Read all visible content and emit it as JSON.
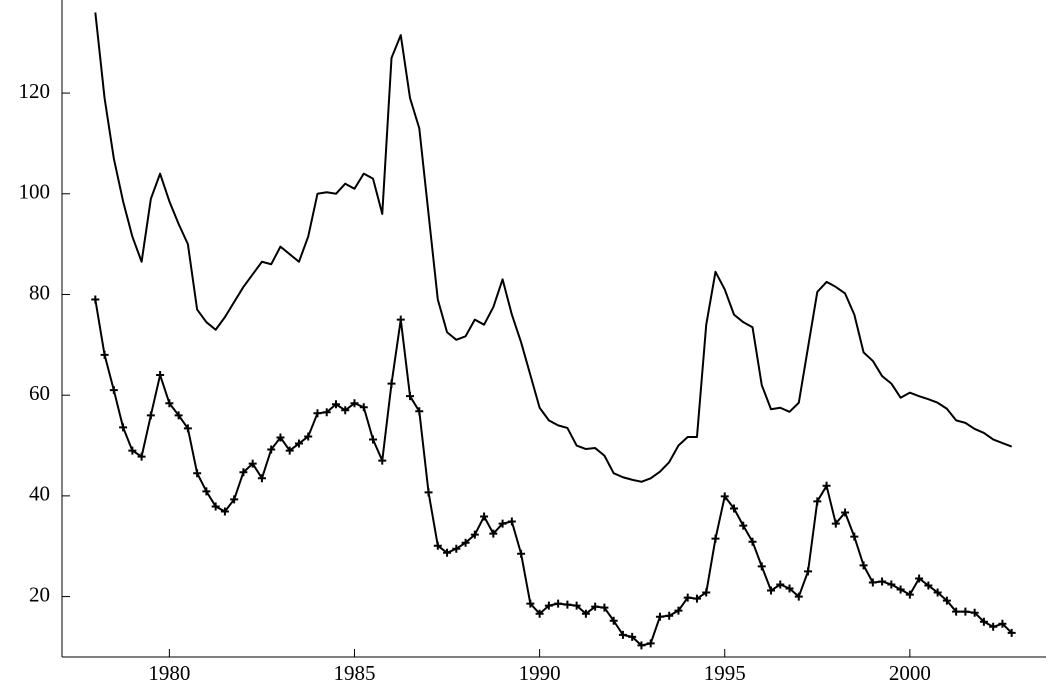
{
  "chart_data": {
    "type": "line",
    "x": [
      1978,
      1978.25,
      1978.5,
      1978.75,
      1979,
      1979.25,
      1979.5,
      1979.75,
      1980,
      1980.25,
      1980.5,
      1980.75,
      1981,
      1981.25,
      1981.5,
      1981.75,
      1982,
      1982.25,
      1982.5,
      1982.75,
      1983,
      1983.25,
      1983.5,
      1983.75,
      1984,
      1984.25,
      1984.5,
      1984.75,
      1985,
      1985.25,
      1985.5,
      1985.75,
      1986,
      1986.25,
      1986.5,
      1986.75,
      1987,
      1987.25,
      1987.5,
      1987.75,
      1988,
      1988.25,
      1988.5,
      1988.75,
      1989,
      1989.25,
      1989.5,
      1989.75,
      1990,
      1990.25,
      1990.5,
      1990.75,
      1991,
      1991.25,
      1991.5,
      1991.75,
      1992,
      1992.25,
      1992.5,
      1992.75,
      1993,
      1993.25,
      1993.5,
      1993.75,
      1994,
      1994.25,
      1994.5,
      1994.75,
      1995,
      1995.25,
      1995.5,
      1995.75,
      1996,
      1996.25,
      1996.5,
      1996.75,
      1997,
      1997.25,
      1997.5,
      1997.75,
      1998,
      1998.25,
      1998.5,
      1998.75,
      1999,
      1999.25,
      1999.5,
      1999.75,
      2000,
      2000.25,
      2000.5,
      2000.75,
      2001,
      2001.25,
      2001.5,
      2001.75,
      2002,
      2002.25,
      2002.5,
      2002.75
    ],
    "series": [
      {
        "color": "#000000",
        "marker": "none",
        "values": [
          136,
          119,
          107,
          98.5,
          91.5,
          86.5,
          99,
          104,
          98.5,
          94,
          90,
          77,
          74.5,
          73,
          75.5,
          78.5,
          81.5,
          84,
          86.5,
          86,
          89.5,
          88,
          86.5,
          91.5,
          100,
          100.3,
          100,
          102,
          101,
          104,
          103,
          96,
          127,
          131.5,
          119,
          113,
          96,
          79,
          72.5,
          71,
          71.7,
          75,
          74,
          77.5,
          83,
          76,
          70.5,
          64,
          57.5,
          55,
          54,
          53.5,
          50,
          49.3,
          49.5,
          48,
          44.5,
          43.7,
          43.2,
          42.8,
          43.5,
          44.8,
          46.7,
          50,
          51.7,
          51.7,
          74,
          84.5,
          81,
          76,
          74.5,
          73.5,
          62,
          57.2,
          57.5,
          56.7,
          58.5,
          69.5,
          80.5,
          82.5,
          81.5,
          80.2,
          76,
          68.5,
          66.8,
          63.8,
          62.3,
          59.5,
          60.5,
          59.8,
          59.2,
          58.5,
          57.3,
          55,
          54.5,
          53.3,
          52.5,
          51.2,
          50.5,
          49.8
        ]
      },
      {
        "color": "#000000",
        "marker": "plus",
        "values": [
          79,
          68,
          61,
          53.6,
          49,
          47.8,
          56,
          64,
          58.4,
          56,
          53.4,
          44.5,
          40.9,
          37.9,
          36.9,
          39.3,
          44.7,
          46.4,
          43.5,
          49.2,
          51.6,
          49,
          50.4,
          51.8,
          56.4,
          56.6,
          58.2,
          57,
          58.4,
          57.6,
          51.2,
          47,
          62.3,
          75,
          59.8,
          56.8,
          40.7,
          30.1,
          28.7,
          29.5,
          30.7,
          32.3,
          35.9,
          32.5,
          34.5,
          34.9,
          28.5,
          18.6,
          16.6,
          18.2,
          18.6,
          18.4,
          18.2,
          16.6,
          18,
          17.8,
          15.2,
          12.4,
          12,
          10.3,
          10.7,
          16,
          16.2,
          17.2,
          19.8,
          19.6,
          20.8,
          31.5,
          39.9,
          37.5,
          34.1,
          30.9,
          26,
          21.2,
          22.4,
          21.6,
          20,
          25,
          38.9,
          42,
          34.5,
          36.7,
          31.9,
          26.2,
          22.8,
          23,
          22.4,
          21.4,
          20.4,
          23.6,
          22.2,
          20.8,
          19.2,
          17,
          17,
          16.8,
          15,
          14,
          14.6,
          12.8
        ]
      }
    ],
    "xlim": [
      1977.1,
      2003.65
    ],
    "xticks": [
      1980,
      1985,
      1990,
      1995,
      2000
    ],
    "ylim": [
      8,
      136.5
    ],
    "yticks": [
      20,
      40,
      60,
      80,
      100,
      120
    ],
    "grid": false
  }
}
